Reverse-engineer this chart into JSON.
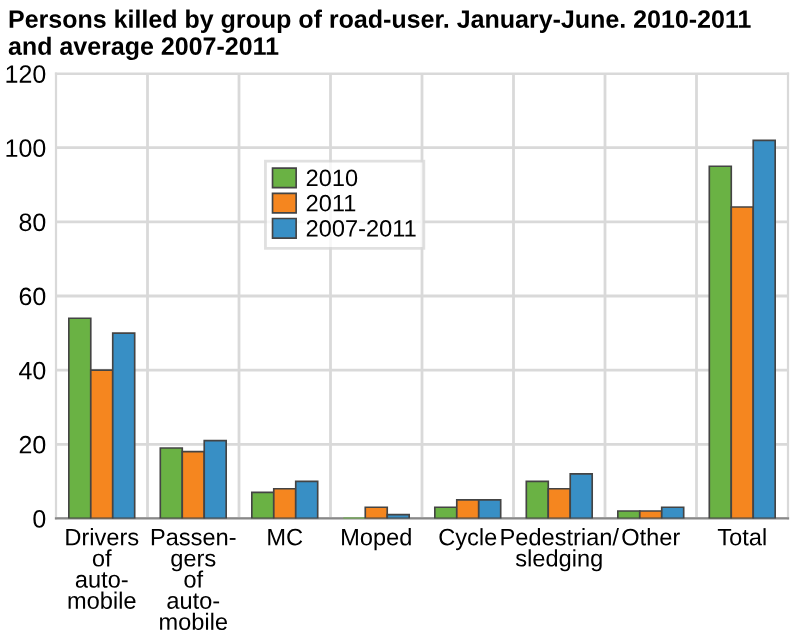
{
  "chart_data": {
    "type": "bar",
    "title": "Persons killed by group of road-user. January-June. 2010-2011 and average 2007-2011",
    "categories": [
      "Drivers\nof\nauto-\nmobile",
      "Passen-\ngers\nof\nauto-\nmobile",
      "MC",
      "Moped",
      "Cycle",
      "Pedestrian/\nsledging",
      "Other",
      "Total"
    ],
    "series": [
      {
        "name": "2010",
        "color": "#6ab244",
        "values": [
          54,
          19,
          7,
          0,
          3,
          10,
          2,
          95
        ]
      },
      {
        "name": "2011",
        "color": "#f5861f",
        "values": [
          40,
          18,
          8,
          3,
          5,
          8,
          2,
          84
        ]
      },
      {
        "name": "2007-2011",
        "color": "#388fc5",
        "values": [
          50,
          21,
          10,
          1,
          5,
          12,
          3,
          102
        ]
      }
    ],
    "ylim": [
      0,
      120
    ],
    "yticks": [
      0,
      20,
      40,
      60,
      80,
      100,
      120
    ],
    "grid": true,
    "legend": "top center"
  }
}
